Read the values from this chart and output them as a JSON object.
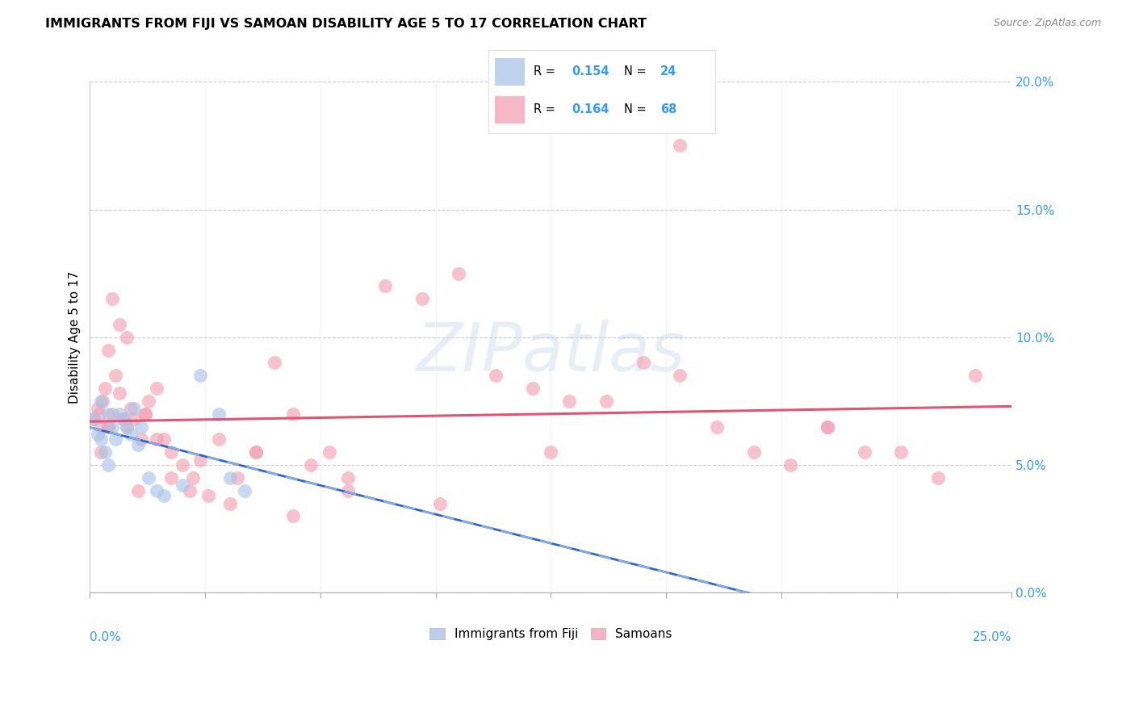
{
  "title": "IMMIGRANTS FROM FIJI VS SAMOAN DISABILITY AGE 5 TO 17 CORRELATION CHART",
  "source": "Source: ZipAtlas.com",
  "ylabel": "Disability Age 5 to 17",
  "xlim": [
    0.0,
    25.0
  ],
  "ylim": [
    0.0,
    20.0
  ],
  "yticks": [
    0.0,
    5.0,
    10.0,
    15.0,
    20.0
  ],
  "fiji_R": 0.154,
  "fiji_N": 24,
  "samoan_R": 0.164,
  "samoan_N": 68,
  "fiji_color": "#aac4e8",
  "samoan_color": "#f4a0b5",
  "fiji_line_color": "#3366cc",
  "samoan_line_color": "#e05575",
  "fiji_dash_color": "#88aadd",
  "fiji_points_x": [
    0.1,
    0.2,
    0.3,
    0.3,
    0.4,
    0.5,
    0.5,
    0.6,
    0.7,
    0.8,
    0.9,
    1.0,
    1.1,
    1.2,
    1.3,
    1.4,
    1.6,
    1.8,
    2.0,
    2.5,
    3.0,
    3.5,
    3.8,
    4.2
  ],
  "fiji_points_y": [
    6.8,
    6.2,
    7.5,
    6.0,
    5.5,
    7.0,
    5.0,
    6.5,
    6.0,
    7.0,
    6.8,
    6.5,
    6.2,
    7.2,
    5.8,
    6.5,
    4.5,
    4.0,
    3.8,
    4.2,
    8.5,
    7.0,
    4.5,
    4.0
  ],
  "samoan_points_x": [
    0.1,
    0.2,
    0.25,
    0.3,
    0.35,
    0.4,
    0.5,
    0.5,
    0.6,
    0.7,
    0.8,
    0.9,
    1.0,
    1.1,
    1.2,
    1.4,
    1.5,
    1.6,
    1.8,
    2.0,
    2.2,
    2.5,
    2.8,
    3.0,
    3.5,
    4.0,
    4.5,
    5.0,
    5.5,
    6.0,
    6.5,
    7.0,
    8.0,
    9.0,
    10.0,
    11.0,
    12.0,
    13.0,
    14.0,
    15.0,
    16.0,
    17.0,
    18.0,
    19.0,
    20.0,
    21.0,
    22.0,
    23.0,
    24.0,
    0.3,
    0.5,
    0.6,
    0.8,
    1.0,
    1.3,
    1.5,
    1.8,
    2.2,
    2.7,
    3.2,
    3.8,
    4.5,
    5.5,
    7.0,
    9.5,
    12.5,
    16.0,
    20.0
  ],
  "samoan_points_y": [
    6.8,
    7.2,
    7.0,
    6.5,
    7.5,
    8.0,
    6.5,
    9.5,
    7.0,
    8.5,
    7.8,
    6.8,
    6.5,
    7.2,
    6.8,
    6.0,
    7.0,
    7.5,
    8.0,
    6.0,
    5.5,
    5.0,
    4.5,
    5.2,
    6.0,
    4.5,
    5.5,
    9.0,
    7.0,
    5.0,
    5.5,
    4.5,
    12.0,
    11.5,
    12.5,
    8.5,
    8.0,
    7.5,
    7.5,
    9.0,
    8.5,
    6.5,
    5.5,
    5.0,
    6.5,
    5.5,
    5.5,
    4.5,
    8.5,
    5.5,
    6.5,
    11.5,
    10.5,
    10.0,
    4.0,
    7.0,
    6.0,
    4.5,
    4.0,
    3.8,
    3.5,
    5.5,
    3.0,
    4.0,
    3.5,
    5.5,
    17.5,
    6.5
  ]
}
